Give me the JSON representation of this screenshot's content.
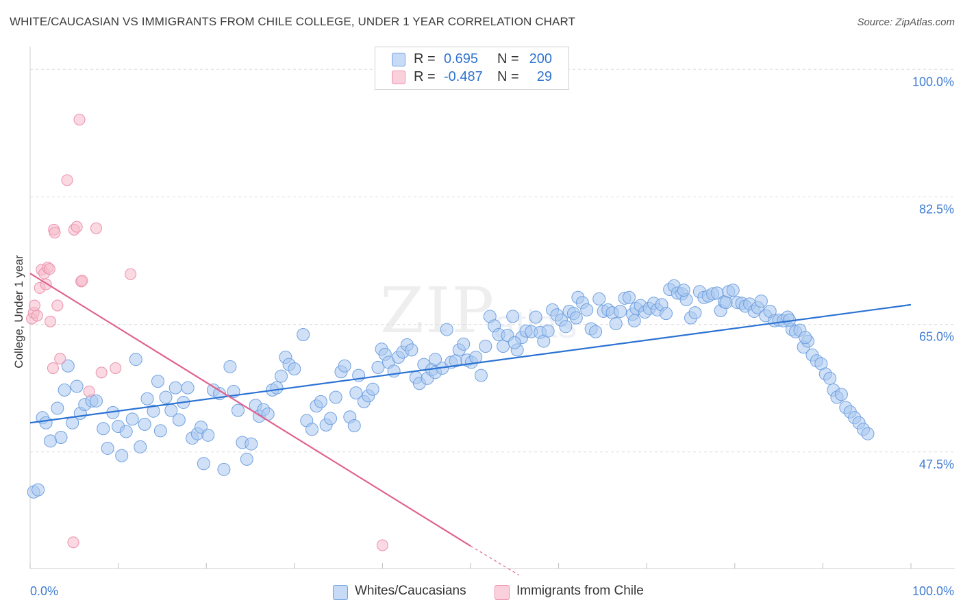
{
  "header": {
    "title": "WHITE/CAUCASIAN VS IMMIGRANTS FROM CHILE COLLEGE, UNDER 1 YEAR CORRELATION CHART",
    "source": "Source: ZipAtlas.com"
  },
  "watermark": {
    "zip": "ZIP",
    "atlas": "atlas"
  },
  "legend_top": {
    "rows": [
      {
        "r_label": "R =",
        "r_value": "0.695",
        "n_label": "N =",
        "n_value": "200",
        "color": "#aac8f0"
      },
      {
        "r_label": "R =",
        "r_value": "-0.487",
        "n_label": "N =",
        "n_value": "29",
        "color": "#f6b9cb"
      }
    ]
  },
  "legend_bottom": {
    "items": [
      {
        "label": "Whites/Caucasians",
        "color": "#aac8f0"
      },
      {
        "label": "Immigrants from Chile",
        "color": "#f6b9cb"
      }
    ]
  },
  "chart_data": {
    "type": "scatter",
    "title": "WHITE/CAUCASIAN VS IMMIGRANTS FROM CHILE COLLEGE, UNDER 1 YEAR CORRELATION CHART",
    "xlabel": "",
    "ylabel": "College, Under 1 year",
    "xlim": [
      0,
      100
    ],
    "ylim": [
      31.5,
      102
    ],
    "x_tick_labels": [
      {
        "value": 0,
        "label": "0.0%"
      },
      {
        "value": 100,
        "label": "100.0%"
      }
    ],
    "y_ticks": [
      {
        "value": 47.5,
        "label": "47.5%"
      },
      {
        "value": 65.0,
        "label": "65.0%"
      },
      {
        "value": 82.5,
        "label": "82.5%"
      },
      {
        "value": 100.0,
        "label": "100.0%"
      }
    ],
    "grid": true,
    "series": [
      {
        "name": "Whites/Caucasians",
        "color": "#6fa0e0",
        "fill": "#aac8f0",
        "trend": {
          "x": [
            0,
            100
          ],
          "y": [
            51.5,
            67.7
          ],
          "color": "#2a72d2"
        },
        "points": [
          [
            0.4,
            42.0
          ],
          [
            0.9,
            42.3
          ],
          [
            1.4,
            52.2
          ],
          [
            1.8,
            51.5
          ],
          [
            2.3,
            49.0
          ],
          [
            3.1,
            53.5
          ],
          [
            3.5,
            49.5
          ],
          [
            3.9,
            56.0
          ],
          [
            4.3,
            59.3
          ],
          [
            4.8,
            51.5
          ],
          [
            5.3,
            56.5
          ],
          [
            5.7,
            52.8
          ],
          [
            6.2,
            54.0
          ],
          [
            7.0,
            54.5
          ],
          [
            7.5,
            54.5
          ],
          [
            8.3,
            50.7
          ],
          [
            8.8,
            48.0
          ],
          [
            9.4,
            52.9
          ],
          [
            10.0,
            51.0
          ],
          [
            10.4,
            47.0
          ],
          [
            10.9,
            50.3
          ],
          [
            11.6,
            52.0
          ],
          [
            12.0,
            60.2
          ],
          [
            12.5,
            48.2
          ],
          [
            13.0,
            51.3
          ],
          [
            13.3,
            54.8
          ],
          [
            14.0,
            53.1
          ],
          [
            14.5,
            57.2
          ],
          [
            14.8,
            50.4
          ],
          [
            15.4,
            55.0
          ],
          [
            16.0,
            53.2
          ],
          [
            16.5,
            56.3
          ],
          [
            16.9,
            51.9
          ],
          [
            17.4,
            54.3
          ],
          [
            17.9,
            56.3
          ],
          [
            18.4,
            49.4
          ],
          [
            19.0,
            50.0
          ],
          [
            19.4,
            50.9
          ],
          [
            19.7,
            45.9
          ],
          [
            20.2,
            49.8
          ],
          [
            20.8,
            56.0
          ],
          [
            21.5,
            55.5
          ],
          [
            22.0,
            45.1
          ],
          [
            22.7,
            59.2
          ],
          [
            23.1,
            55.8
          ],
          [
            23.6,
            53.2
          ],
          [
            24.1,
            48.8
          ],
          [
            24.6,
            46.5
          ],
          [
            25.1,
            48.6
          ],
          [
            25.6,
            53.9
          ],
          [
            26.0,
            52.4
          ],
          [
            26.5,
            53.3
          ],
          [
            27.0,
            52.7
          ],
          [
            27.5,
            56.0
          ],
          [
            28.0,
            56.3
          ],
          [
            28.5,
            57.9
          ],
          [
            29.0,
            60.5
          ],
          [
            29.4,
            59.5
          ],
          [
            30.0,
            58.9
          ],
          [
            31.0,
            63.6
          ],
          [
            31.4,
            51.8
          ],
          [
            32.0,
            50.6
          ],
          [
            32.5,
            53.8
          ],
          [
            33.0,
            54.4
          ],
          [
            33.6,
            51.2
          ],
          [
            34.1,
            52.1
          ],
          [
            34.7,
            55.0
          ],
          [
            35.3,
            58.5
          ],
          [
            35.7,
            59.3
          ],
          [
            36.3,
            52.3
          ],
          [
            36.8,
            51.1
          ],
          [
            37.3,
            58.0
          ],
          [
            37.9,
            54.4
          ],
          [
            38.4,
            55.2
          ],
          [
            38.9,
            56.1
          ],
          [
            39.5,
            59.1
          ],
          [
            39.9,
            61.6
          ],
          [
            40.3,
            60.9
          ],
          [
            40.7,
            59.8
          ],
          [
            41.3,
            58.6
          ],
          [
            41.8,
            60.5
          ],
          [
            42.3,
            61.2
          ],
          [
            42.8,
            62.2
          ],
          [
            43.3,
            61.5
          ],
          [
            43.8,
            57.7
          ],
          [
            44.2,
            56.9
          ],
          [
            44.7,
            59.5
          ],
          [
            45.1,
            57.6
          ],
          [
            45.6,
            58.8
          ],
          [
            46.0,
            58.4
          ],
          [
            46.8,
            59.0
          ],
          [
            47.3,
            64.3
          ],
          [
            47.8,
            59.8
          ],
          [
            48.3,
            60.0
          ],
          [
            48.7,
            61.5
          ],
          [
            49.2,
            62.3
          ],
          [
            49.6,
            60.1
          ],
          [
            50.1,
            59.8
          ],
          [
            50.6,
            60.5
          ],
          [
            51.2,
            58.0
          ],
          [
            51.7,
            62.0
          ],
          [
            52.2,
            66.1
          ],
          [
            52.7,
            64.8
          ],
          [
            53.2,
            63.6
          ],
          [
            53.7,
            62.0
          ],
          [
            54.2,
            63.5
          ],
          [
            54.8,
            66.1
          ],
          [
            55.3,
            61.5
          ],
          [
            55.8,
            63.2
          ],
          [
            56.3,
            64.1
          ],
          [
            56.9,
            64.0
          ],
          [
            57.4,
            66.0
          ],
          [
            57.9,
            63.9
          ],
          [
            58.3,
            62.7
          ],
          [
            58.8,
            64.1
          ],
          [
            59.3,
            67.0
          ],
          [
            59.8,
            66.3
          ],
          [
            60.3,
            65.6
          ],
          [
            60.8,
            64.7
          ],
          [
            61.2,
            66.8
          ],
          [
            61.7,
            66.5
          ],
          [
            62.2,
            68.7
          ],
          [
            62.7,
            68.0
          ],
          [
            63.2,
            67.0
          ],
          [
            63.7,
            64.4
          ],
          [
            64.2,
            64.0
          ],
          [
            64.6,
            68.5
          ],
          [
            65.1,
            66.8
          ],
          [
            65.6,
            67.0
          ],
          [
            66.1,
            66.6
          ],
          [
            66.5,
            65.1
          ],
          [
            67.0,
            66.8
          ],
          [
            67.5,
            68.6
          ],
          [
            68.0,
            68.7
          ],
          [
            68.4,
            66.4
          ],
          [
            68.8,
            67.2
          ],
          [
            69.3,
            67.6
          ],
          [
            69.8,
            66.7
          ],
          [
            70.3,
            67.2
          ],
          [
            70.8,
            67.9
          ],
          [
            71.2,
            67.0
          ],
          [
            71.7,
            67.7
          ],
          [
            72.2,
            66.5
          ],
          [
            72.6,
            69.8
          ],
          [
            73.1,
            70.3
          ],
          [
            73.5,
            69.3
          ],
          [
            74.0,
            69.2
          ],
          [
            74.5,
            68.4
          ],
          [
            75.0,
            65.9
          ],
          [
            75.5,
            66.6
          ],
          [
            76.0,
            69.5
          ],
          [
            76.5,
            68.7
          ],
          [
            77.0,
            68.9
          ],
          [
            77.5,
            69.2
          ],
          [
            78.0,
            69.3
          ],
          [
            78.4,
            66.9
          ],
          [
            78.8,
            68.1
          ],
          [
            79.3,
            69.5
          ],
          [
            79.8,
            69.7
          ],
          [
            80.3,
            68.0
          ],
          [
            80.8,
            67.9
          ],
          [
            81.2,
            67.5
          ],
          [
            81.7,
            67.8
          ],
          [
            82.2,
            66.8
          ],
          [
            82.6,
            67.3
          ],
          [
            83.0,
            68.2
          ],
          [
            83.5,
            66.2
          ],
          [
            84.0,
            66.8
          ],
          [
            84.5,
            65.5
          ],
          [
            85.0,
            65.6
          ],
          [
            85.5,
            65.5
          ],
          [
            86.0,
            66.0
          ],
          [
            86.5,
            64.3
          ],
          [
            86.9,
            64.0
          ],
          [
            87.4,
            64.2
          ],
          [
            87.8,
            61.9
          ],
          [
            88.3,
            62.7
          ],
          [
            88.8,
            60.8
          ],
          [
            89.3,
            60.0
          ],
          [
            89.8,
            59.6
          ],
          [
            90.3,
            58.2
          ],
          [
            90.8,
            57.6
          ],
          [
            91.2,
            56.0
          ],
          [
            91.6,
            55.0
          ],
          [
            92.1,
            55.4
          ],
          [
            92.6,
            53.6
          ],
          [
            93.1,
            53.0
          ],
          [
            93.6,
            52.2
          ],
          [
            94.1,
            51.5
          ],
          [
            94.6,
            50.6
          ],
          [
            95.1,
            50.0
          ],
          [
            37.0,
            55.6
          ],
          [
            46.0,
            60.2
          ],
          [
            55.0,
            62.5
          ],
          [
            62.0,
            65.9
          ],
          [
            68.6,
            65.5
          ],
          [
            74.2,
            69.7
          ],
          [
            79.0,
            68.0
          ],
          [
            86.2,
            65.6
          ],
          [
            88.0,
            63.2
          ]
        ]
      },
      {
        "name": "Immigrants from Chile",
        "color": "#ec8fab",
        "fill": "#f6b9cb",
        "trend": {
          "x": [
            0,
            50.0
          ],
          "y": [
            72.0,
            34.6
          ],
          "dashed_to": [
            55.5,
            30.6
          ],
          "color": "#e0628d"
        },
        "points": [
          [
            0.2,
            65.8
          ],
          [
            0.4,
            66.6
          ],
          [
            0.5,
            67.6
          ],
          [
            0.8,
            66.2
          ],
          [
            1.1,
            70.0
          ],
          [
            1.3,
            72.5
          ],
          [
            1.6,
            72.0
          ],
          [
            1.8,
            70.5
          ],
          [
            2.0,
            72.8
          ],
          [
            2.2,
            72.6
          ],
          [
            2.3,
            65.4
          ],
          [
            2.6,
            59.0
          ],
          [
            2.7,
            78.0
          ],
          [
            2.8,
            77.6
          ],
          [
            3.1,
            67.6
          ],
          [
            3.4,
            60.3
          ],
          [
            4.2,
            84.8
          ],
          [
            4.9,
            35.1
          ],
          [
            5.0,
            78.0
          ],
          [
            5.3,
            78.4
          ],
          [
            5.6,
            93.1
          ],
          [
            5.8,
            70.9
          ],
          [
            5.9,
            71.0
          ],
          [
            6.7,
            55.8
          ],
          [
            7.5,
            78.2
          ],
          [
            8.1,
            58.4
          ],
          [
            9.7,
            59.0
          ],
          [
            11.4,
            71.9
          ],
          [
            40.0,
            34.7
          ]
        ]
      }
    ]
  }
}
